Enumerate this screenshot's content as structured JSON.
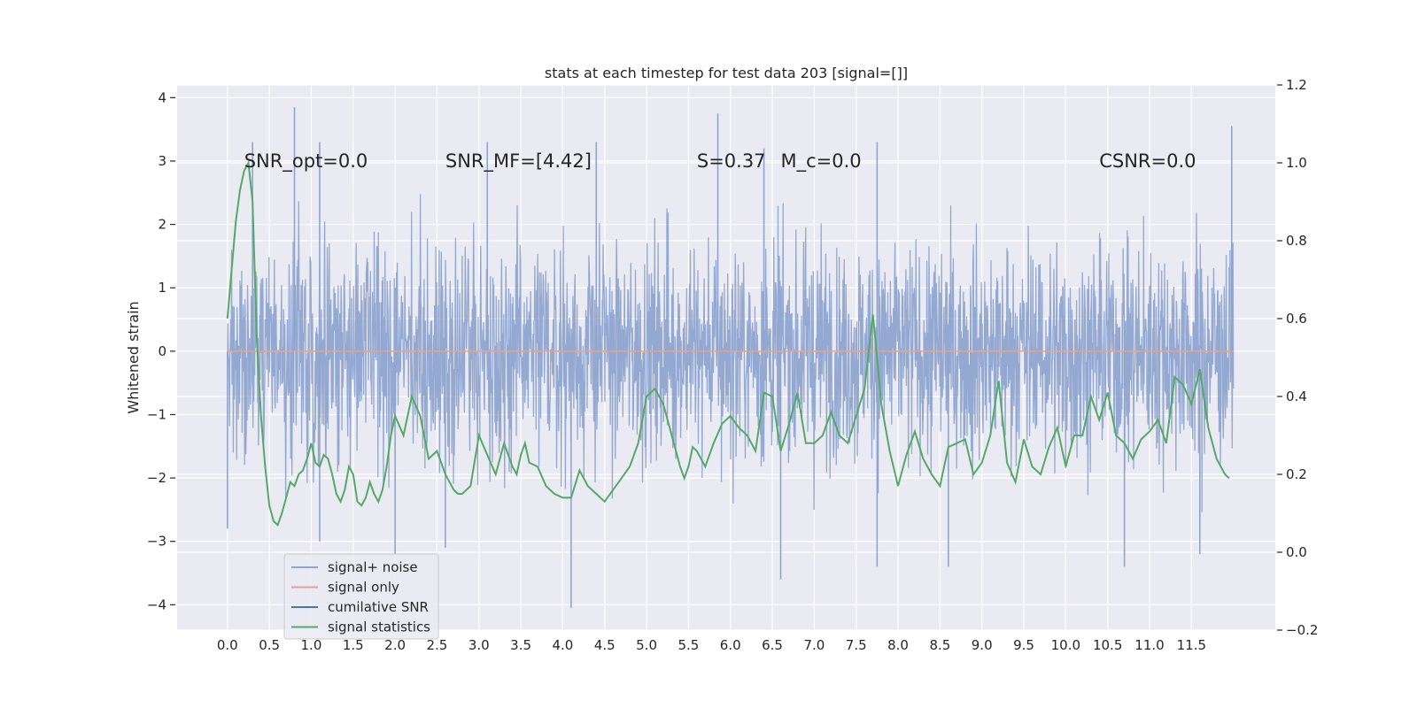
{
  "chart_data": {
    "type": "line",
    "title": "stats at each timestep for test data 203 [signal=[]]",
    "xlabel": "",
    "ylabel": "Whitened strain",
    "xlim": [
      -0.6,
      12.5
    ],
    "ylim": [
      -4.4,
      4.2
    ],
    "y2lim": [
      -0.2,
      1.2
    ],
    "x_ticks": [
      0.0,
      0.5,
      1.0,
      1.5,
      2.0,
      2.5,
      3.0,
      3.5,
      4.0,
      4.5,
      5.0,
      5.5,
      6.0,
      6.5,
      7.0,
      7.5,
      8.0,
      8.5,
      9.0,
      9.5,
      10.0,
      10.5,
      11.0,
      11.5
    ],
    "x_tick_labels": [
      "0.0",
      "0.5",
      "1.0",
      "1.5",
      "2.0",
      "2.5",
      "3.0",
      "3.5",
      "4.0",
      "4.5",
      "5.0",
      "5.5",
      "6.0",
      "6.5",
      "7.0",
      "7.5",
      "8.0",
      "8.5",
      "9.0",
      "9.5",
      "10.0",
      "10.5",
      "11.0",
      "11.5"
    ],
    "y_ticks": [
      -4,
      -3,
      -2,
      -1,
      0,
      1,
      2,
      3,
      4
    ],
    "y_tick_labels": [
      "−4",
      "−3",
      "−2",
      "−1",
      "0",
      "1",
      "2",
      "3",
      "4"
    ],
    "y2_ticks": [
      -0.2,
      0.0,
      0.2,
      0.4,
      0.6,
      0.8,
      1.0,
      1.2
    ],
    "y2_tick_labels": [
      "−0.2",
      "0.0",
      "0.2",
      "0.4",
      "0.6",
      "0.8",
      "1.0",
      "1.2"
    ],
    "annotations": [
      {
        "name": "snr-opt",
        "text": "SNR_opt=0.0",
        "x": 0.2,
        "y": 3.0
      },
      {
        "name": "snr-mf",
        "text": "SNR_MF=[4.42]",
        "x": 2.6,
        "y": 3.0
      },
      {
        "name": "s-value",
        "text": "S=0.37",
        "x": 5.6,
        "y": 3.0
      },
      {
        "name": "mc-value",
        "text": "M_c=0.0",
        "x": 6.6,
        "y": 3.0
      },
      {
        "name": "csnr",
        "text": "CSNR=0.0",
        "x": 10.4,
        "y": 3.0
      }
    ],
    "legend_position": "lower-left",
    "series": [
      {
        "name": "signal+ noise",
        "color": "#8fa5cf",
        "axis": "left",
        "x_range": [
          0.0,
          12.0
        ],
        "envelope": {
          "typical_low": -1.6,
          "typical_high": 1.6,
          "spikes": [
            {
              "x": 0.0,
              "y": -2.8
            },
            {
              "x": 0.3,
              "y": 3.3
            },
            {
              "x": 0.8,
              "y": 3.85
            },
            {
              "x": 1.1,
              "y": 3.3
            },
            {
              "x": 1.1,
              "y": -3.0
            },
            {
              "x": 2.0,
              "y": -3.2
            },
            {
              "x": 2.6,
              "y": -3.1
            },
            {
              "x": 3.1,
              "y": 3.3
            },
            {
              "x": 4.1,
              "y": -4.05
            },
            {
              "x": 4.4,
              "y": 3.3
            },
            {
              "x": 5.85,
              "y": 3.75
            },
            {
              "x": 6.6,
              "y": -3.6
            },
            {
              "x": 6.4,
              "y": 3.2
            },
            {
              "x": 7.75,
              "y": 3.3
            },
            {
              "x": 7.75,
              "y": -3.4
            },
            {
              "x": 8.6,
              "y": -3.4
            },
            {
              "x": 10.7,
              "y": -3.4
            },
            {
              "x": 11.6,
              "y": -3.2
            },
            {
              "x": 11.98,
              "y": 3.55
            }
          ]
        }
      },
      {
        "name": "signal only",
        "color": "#e1a591",
        "axis": "left",
        "x": [
          0.0,
          12.0
        ],
        "values": [
          0.0,
          0.0
        ]
      },
      {
        "name": "cumilative SNR",
        "color": "#4c72b0",
        "axis": "right",
        "x": [],
        "values": []
      },
      {
        "name": "signal statistics",
        "color": "#55a868",
        "axis": "right",
        "x": [
          0.0,
          0.1,
          0.15,
          0.2,
          0.25,
          0.3,
          0.35,
          0.4,
          0.45,
          0.5,
          0.55,
          0.6,
          0.65,
          0.7,
          0.75,
          0.8,
          0.85,
          0.9,
          0.95,
          1.0,
          1.05,
          1.1,
          1.15,
          1.2,
          1.25,
          1.3,
          1.35,
          1.4,
          1.45,
          1.5,
          1.55,
          1.6,
          1.65,
          1.7,
          1.75,
          1.8,
          1.85,
          1.9,
          1.95,
          2.0,
          2.1,
          2.2,
          2.3,
          2.4,
          2.5,
          2.6,
          2.7,
          2.75,
          2.8,
          2.9,
          3.0,
          3.1,
          3.2,
          3.3,
          3.4,
          3.45,
          3.5,
          3.55,
          3.6,
          3.7,
          3.8,
          3.9,
          4.0,
          4.1,
          4.2,
          4.3,
          4.4,
          4.5,
          4.6,
          4.7,
          4.8,
          4.9,
          5.0,
          5.1,
          5.2,
          5.3,
          5.4,
          5.45,
          5.5,
          5.55,
          5.6,
          5.7,
          5.8,
          5.9,
          6.0,
          6.1,
          6.2,
          6.3,
          6.4,
          6.5,
          6.6,
          6.7,
          6.8,
          6.9,
          7.0,
          7.1,
          7.2,
          7.3,
          7.4,
          7.5,
          7.6,
          7.7,
          7.75,
          7.8,
          7.9,
          8.0,
          8.1,
          8.2,
          8.3,
          8.4,
          8.5,
          8.6,
          8.7,
          8.8,
          8.9,
          9.0,
          9.1,
          9.2,
          9.3,
          9.4,
          9.5,
          9.6,
          9.7,
          9.8,
          9.9,
          10.0,
          10.1,
          10.2,
          10.3,
          10.4,
          10.5,
          10.6,
          10.7,
          10.8,
          10.9,
          11.0,
          11.1,
          11.2,
          11.3,
          11.4,
          11.5,
          11.6,
          11.7,
          11.8,
          11.9,
          11.95
        ],
        "values": [
          0.6,
          0.85,
          0.93,
          0.98,
          1.0,
          0.9,
          0.55,
          0.35,
          0.22,
          0.12,
          0.08,
          0.07,
          0.1,
          0.14,
          0.18,
          0.17,
          0.2,
          0.21,
          0.24,
          0.28,
          0.23,
          0.22,
          0.25,
          0.24,
          0.2,
          0.15,
          0.13,
          0.16,
          0.22,
          0.2,
          0.13,
          0.12,
          0.14,
          0.18,
          0.15,
          0.13,
          0.16,
          0.22,
          0.3,
          0.35,
          0.3,
          0.4,
          0.35,
          0.24,
          0.26,
          0.2,
          0.16,
          0.15,
          0.15,
          0.17,
          0.3,
          0.25,
          0.2,
          0.28,
          0.22,
          0.2,
          0.25,
          0.28,
          0.23,
          0.22,
          0.17,
          0.15,
          0.14,
          0.14,
          0.21,
          0.17,
          0.15,
          0.13,
          0.16,
          0.19,
          0.22,
          0.28,
          0.4,
          0.42,
          0.38,
          0.3,
          0.22,
          0.19,
          0.22,
          0.27,
          0.26,
          0.22,
          0.28,
          0.33,
          0.35,
          0.32,
          0.3,
          0.26,
          0.41,
          0.4,
          0.26,
          0.33,
          0.41,
          0.28,
          0.28,
          0.3,
          0.36,
          0.3,
          0.28,
          0.35,
          0.42,
          0.61,
          0.5,
          0.38,
          0.26,
          0.17,
          0.25,
          0.31,
          0.24,
          0.2,
          0.17,
          0.27,
          0.28,
          0.29,
          0.2,
          0.23,
          0.3,
          0.44,
          0.23,
          0.18,
          0.29,
          0.22,
          0.2,
          0.27,
          0.32,
          0.22,
          0.3,
          0.3,
          0.4,
          0.34,
          0.41,
          0.3,
          0.28,
          0.24,
          0.29,
          0.31,
          0.34,
          0.28,
          0.45,
          0.43,
          0.38,
          0.47,
          0.32,
          0.24,
          0.2,
          0.19
        ]
      }
    ]
  }
}
